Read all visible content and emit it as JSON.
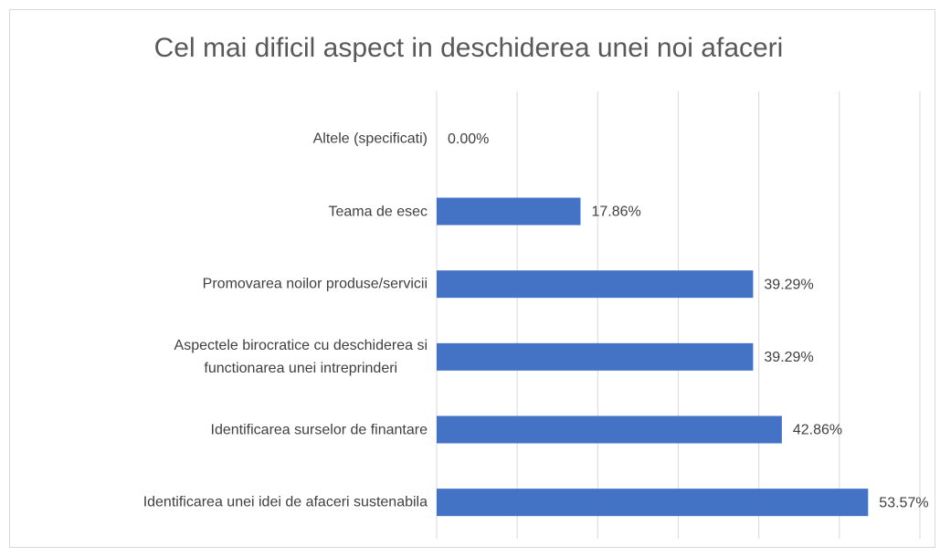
{
  "chart_data": {
    "type": "bar",
    "orientation": "horizontal",
    "title": "Cel mai dificil aspect in deschiderea unei noi afaceri",
    "categories": [
      "Altele (specificati)",
      "Teama de esec",
      "Promovarea noilor produse/servicii",
      "Aspectele birocratice cu deschiderea si\nfunctionarea unei intreprinderi",
      "Identificarea surselor de finantare",
      "Identificarea unei idei de afaceri sustenabila"
    ],
    "values": [
      0,
      17.86,
      39.29,
      39.29,
      42.86,
      53.57
    ],
    "value_labels": [
      "0.00%",
      "17.86%",
      "39.29%",
      "39.29%",
      "42.86%",
      "53.57%"
    ],
    "color": "#4472c4",
    "xlim": [
      0,
      60
    ],
    "xticks": [
      0,
      10,
      20,
      30,
      40,
      50,
      60
    ],
    "grid": true
  }
}
